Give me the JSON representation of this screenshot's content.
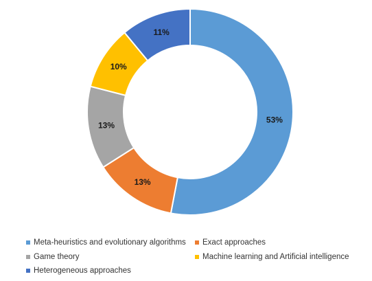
{
  "chart_data": {
    "type": "donut",
    "title": "",
    "categories": [
      "Meta-heuristics and evolutionary algorithms",
      "Exact approaches",
      "Game theory",
      "Machine learning and Artificial intelligence",
      "Heterogeneous approaches"
    ],
    "values": [
      53,
      13,
      13,
      10,
      11
    ],
    "data_labels": [
      "53%",
      "13%",
      "13%",
      "10%",
      "11%"
    ],
    "colors": [
      "#5B9BD5",
      "#ED7D31",
      "#A5A5A5",
      "#FFC000",
      "#4472C4"
    ],
    "legend_position": "bottom"
  }
}
